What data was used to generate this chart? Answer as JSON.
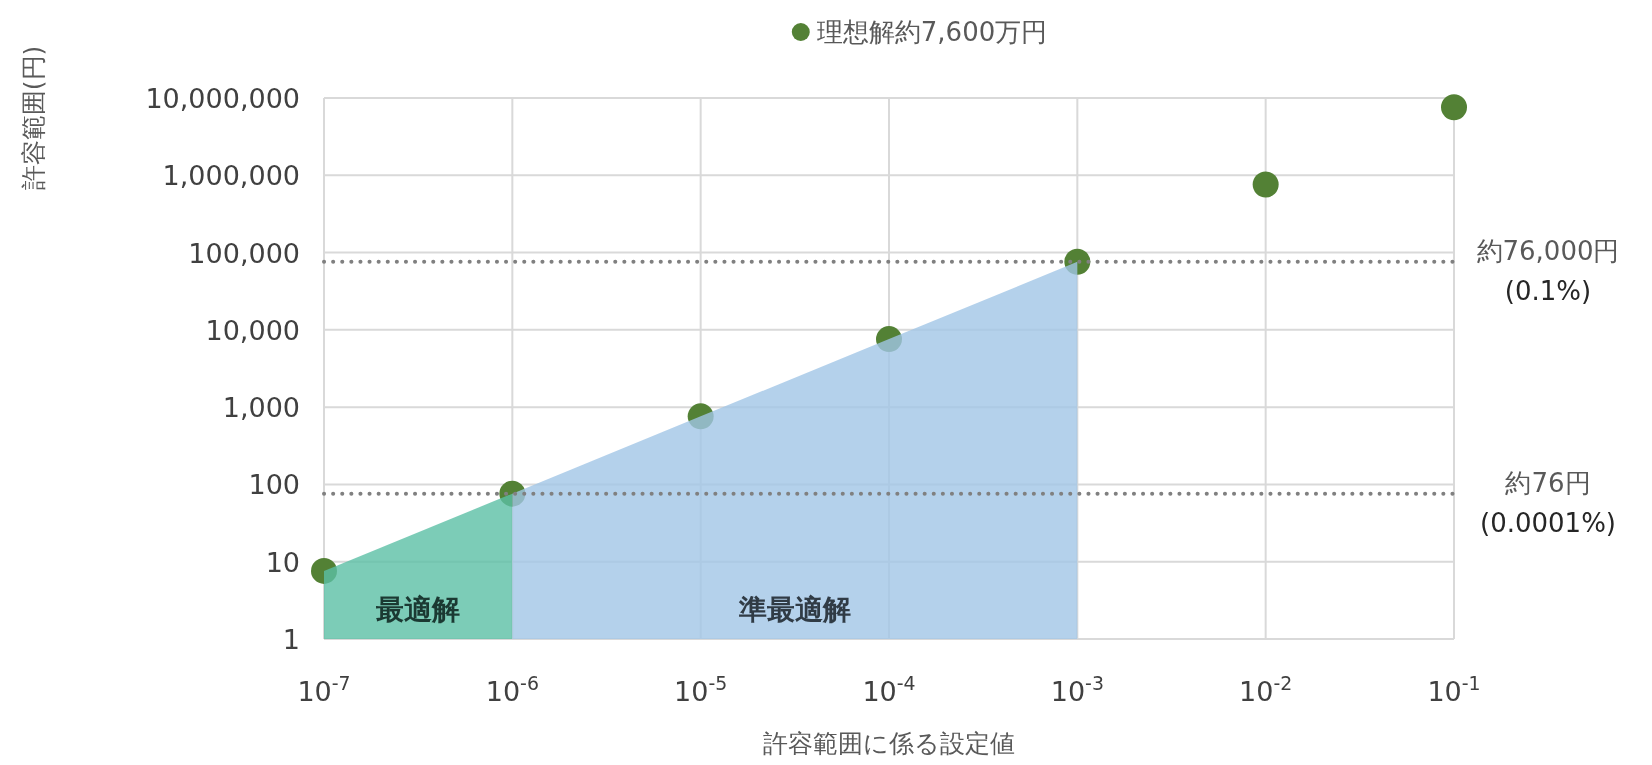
{
  "chart_data": {
    "type": "scatter",
    "xlabel": "許容範囲に係る設定値",
    "ylabel": "許容範囲(円)",
    "log": "xy",
    "xlim": [
      1e-07,
      0.1
    ],
    "ylim": [
      1,
      10000000
    ],
    "xticks": [
      {
        "value": 1e-07,
        "label": "10$^{-7}$"
      },
      {
        "value": 1e-06,
        "label": "10$^{-6}$"
      },
      {
        "value": 1e-05,
        "label": "10$^{-5}$"
      },
      {
        "value": 0.0001,
        "label": "10$^{-4}$"
      },
      {
        "value": 0.001,
        "label": "10$^{-3}$"
      },
      {
        "value": 0.01,
        "label": "10$^{-2}$"
      },
      {
        "value": 0.1,
        "label": "10$^{-1}$"
      }
    ],
    "yticks": [
      1,
      10,
      100,
      {
        "value": 1000,
        "label": "1,000"
      },
      {
        "value": 10000,
        "label": "10,000"
      },
      {
        "value": 100000,
        "label": "100,000"
      },
      {
        "value": 1000000,
        "label": "1,000,000"
      },
      {
        "value": 10000000,
        "label": "10,000,000"
      }
    ],
    "grid": true,
    "legend": "top",
    "series": [
      {
        "type": "area",
        "name": "最適解",
        "color": "#5bbfa5",
        "x": [
          1e-07,
          1e-06
        ],
        "values": [
          7.6,
          76
        ]
      },
      {
        "type": "area",
        "name": "準最適解",
        "color": "#a1c6e6",
        "x": [
          1e-06,
          1e-05,
          0.0001,
          0.001
        ],
        "values": [
          76,
          760,
          7600,
          76000
        ]
      },
      {
        "name": "理想解約7,600万円",
        "marker": "circle",
        "color": "#538135",
        "x": [
          1e-07,
          1e-06,
          1e-05,
          0.0001,
          0.001,
          0.01,
          0.1
        ],
        "values": [
          7.6,
          76,
          760,
          7600,
          76000,
          760000,
          7600000
        ]
      }
    ],
    "ref_lines": [
      {
        "axis": "y",
        "value": 76000,
        "label": "約76,000円 (0.1%)",
        "color": "#808080",
        "line_style": "dotted"
      },
      {
        "axis": "y",
        "value": 76,
        "label": "約76円 (0.0001%)",
        "color": "#808080",
        "line_style": "dotted"
      }
    ]
  }
}
